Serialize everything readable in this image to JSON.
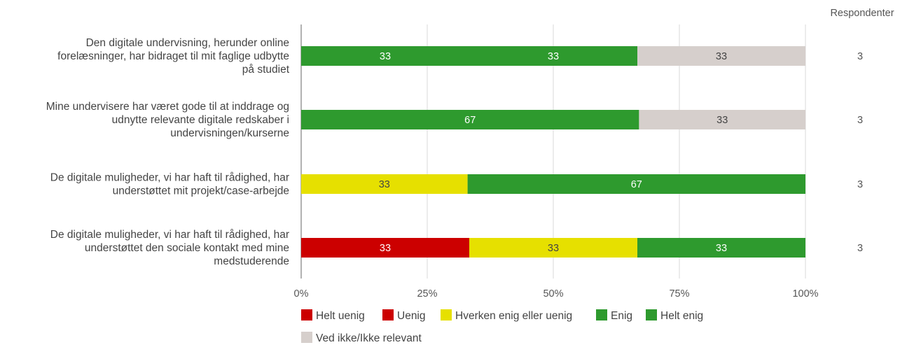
{
  "chart_data": {
    "type": "bar",
    "orientation": "horizontal",
    "stacked": true,
    "percent_scale": true,
    "respondents_header": "Respondenter",
    "categories": [
      [
        "Den digitale undervisning, herunder online",
        "forelæsninger, har bidraget til mit faglige udbytte",
        "på studiet"
      ],
      [
        "Mine undervisere har været gode til at inddrage og",
        "udnytte relevante digitale redskaber i",
        "undervisningen/kurserne"
      ],
      [
        "De digitale muligheder, vi har haft til rådighed, har",
        "understøttet mit projekt/case-arbejde"
      ],
      [
        "De digitale muligheder, vi har haft til rådighed, har",
        "understøttet den sociale kontakt med mine",
        "medstuderende"
      ]
    ],
    "respondents": [
      3,
      3,
      3,
      3
    ],
    "series": [
      {
        "name": "Helt uenig",
        "color": "#cc0000",
        "values": [
          0,
          0,
          0,
          0
        ]
      },
      {
        "name": "Uenig",
        "color": "#cc0000",
        "values": [
          0,
          0,
          0,
          33
        ]
      },
      {
        "name": "Hverken enig eller uenig",
        "color": "#e6e000",
        "values": [
          0,
          0,
          33,
          33
        ]
      },
      {
        "name": "Enig",
        "color": "#2e9a2e",
        "values": [
          33,
          67,
          67,
          33
        ]
      },
      {
        "name": "Helt enig",
        "color": "#2e9a2e",
        "values": [
          33,
          0,
          0,
          0
        ]
      },
      {
        "name": "Ved ikke/Ikke relevant",
        "color": "#d6cfcc",
        "values": [
          33,
          33,
          0,
          0
        ]
      }
    ],
    "xticks": [
      "0%",
      "25%",
      "50%",
      "75%",
      "100%"
    ],
    "xlim": [
      0,
      100
    ],
    "grid": true,
    "legend_position": "bottom"
  }
}
